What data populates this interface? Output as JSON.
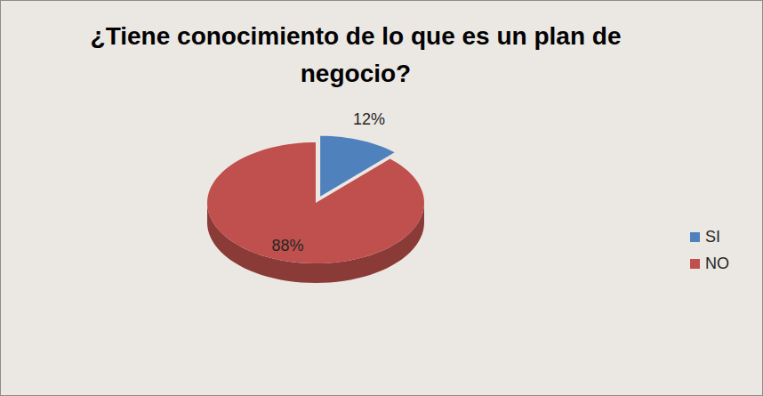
{
  "chart_data": {
    "type": "pie",
    "title": "¿Tiene conocimiento de lo que es un plan de negocio?",
    "categories": [
      "SI",
      "NO"
    ],
    "values": [
      12,
      88
    ],
    "value_labels": [
      "12%",
      "88%"
    ],
    "colors": [
      "#4f81bd",
      "#c0504d"
    ],
    "data_labels": true,
    "legend": "right"
  }
}
